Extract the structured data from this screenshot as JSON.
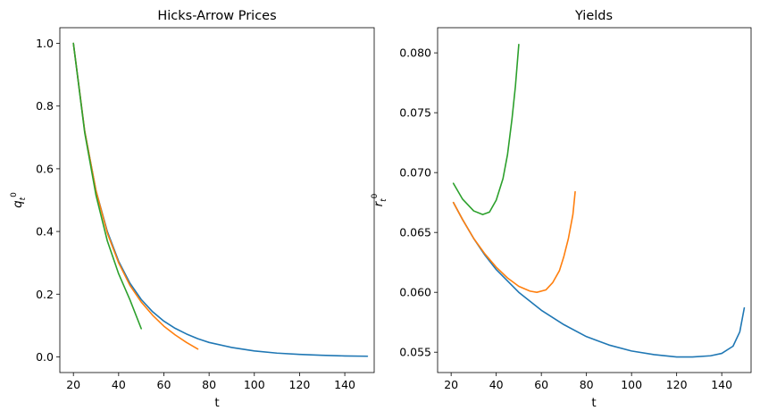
{
  "chart_data": [
    {
      "type": "line",
      "title": "Hicks-Arrow Prices",
      "xlabel": "t",
      "ylabel": "q_t^0",
      "xlim": [
        14,
        153
      ],
      "ylim": [
        -0.05,
        1.05
      ],
      "xticks": [
        20,
        40,
        60,
        80,
        100,
        120,
        140
      ],
      "xtick_labels": [
        "20",
        "40",
        "60",
        "80",
        "100",
        "120",
        "140"
      ],
      "yticks": [
        0.0,
        0.2,
        0.4,
        0.6,
        0.8,
        1.0
      ],
      "ytick_labels": [
        "0.0",
        "0.2",
        "0.4",
        "0.6",
        "0.8",
        "1.0"
      ],
      "grid": false,
      "series": [
        {
          "color": "#1f77b4",
          "x": [
            20,
            25,
            30,
            35,
            40,
            45,
            50,
            55,
            60,
            65,
            70,
            75,
            80,
            90,
            100,
            110,
            120,
            130,
            140,
            150
          ],
          "y": [
            1.0,
            0.72,
            0.53,
            0.4,
            0.305,
            0.235,
            0.183,
            0.144,
            0.114,
            0.091,
            0.073,
            0.058,
            0.046,
            0.03,
            0.019,
            0.012,
            0.008,
            0.005,
            0.003,
            0.002
          ]
        },
        {
          "color": "#ff7f0e",
          "x": [
            20,
            25,
            30,
            35,
            40,
            45,
            50,
            55,
            60,
            65,
            70,
            75
          ],
          "y": [
            1.0,
            0.72,
            0.53,
            0.395,
            0.3,
            0.228,
            0.175,
            0.133,
            0.098,
            0.07,
            0.046,
            0.025
          ]
        },
        {
          "color": "#2ca02c",
          "x": [
            20,
            25,
            30,
            35,
            40,
            45,
            50
          ],
          "y": [
            1.0,
            0.715,
            0.515,
            0.37,
            0.265,
            0.182,
            0.09
          ]
        }
      ]
    },
    {
      "type": "line",
      "title": "Yields",
      "xlabel": "t",
      "ylabel": "r_t^0",
      "xlim": [
        14,
        153
      ],
      "ylim": [
        0.0533,
        0.0821
      ],
      "xticks": [
        20,
        40,
        60,
        80,
        100,
        120,
        140
      ],
      "xtick_labels": [
        "20",
        "40",
        "60",
        "80",
        "100",
        "120",
        "140"
      ],
      "yticks": [
        0.055,
        0.06,
        0.065,
        0.07,
        0.075,
        0.08
      ],
      "ytick_labels": [
        "0.055",
        "0.060",
        "0.065",
        "0.070",
        "0.075",
        "0.080"
      ],
      "grid": false,
      "series": [
        {
          "color": "#1f77b4",
          "x": [
            21,
            25,
            30,
            35,
            40,
            50,
            60,
            70,
            80,
            90,
            100,
            110,
            120,
            127,
            135,
            140,
            145,
            148,
            150
          ],
          "y": [
            0.0675,
            0.0661,
            0.0645,
            0.0631,
            0.0619,
            0.06,
            0.0585,
            0.0573,
            0.0563,
            0.0556,
            0.0551,
            0.0548,
            0.0546,
            0.0546,
            0.0547,
            0.0549,
            0.0555,
            0.0567,
            0.0587
          ]
        },
        {
          "color": "#ff7f0e",
          "x": [
            21,
            25,
            30,
            35,
            40,
            45,
            50,
            55,
            58,
            62,
            65,
            68,
            70,
            72,
            74,
            75
          ],
          "y": [
            0.0675,
            0.0661,
            0.0645,
            0.0632,
            0.0621,
            0.0612,
            0.0605,
            0.0601,
            0.06,
            0.0602,
            0.0608,
            0.0618,
            0.063,
            0.0645,
            0.0665,
            0.0684
          ]
        },
        {
          "color": "#2ca02c",
          "x": [
            21,
            25,
            30,
            34,
            37,
            40,
            43,
            45,
            47,
            48.5,
            50
          ],
          "y": [
            0.0691,
            0.0678,
            0.0668,
            0.0665,
            0.0667,
            0.0677,
            0.0695,
            0.0715,
            0.0745,
            0.0772,
            0.0807
          ]
        }
      ]
    }
  ]
}
